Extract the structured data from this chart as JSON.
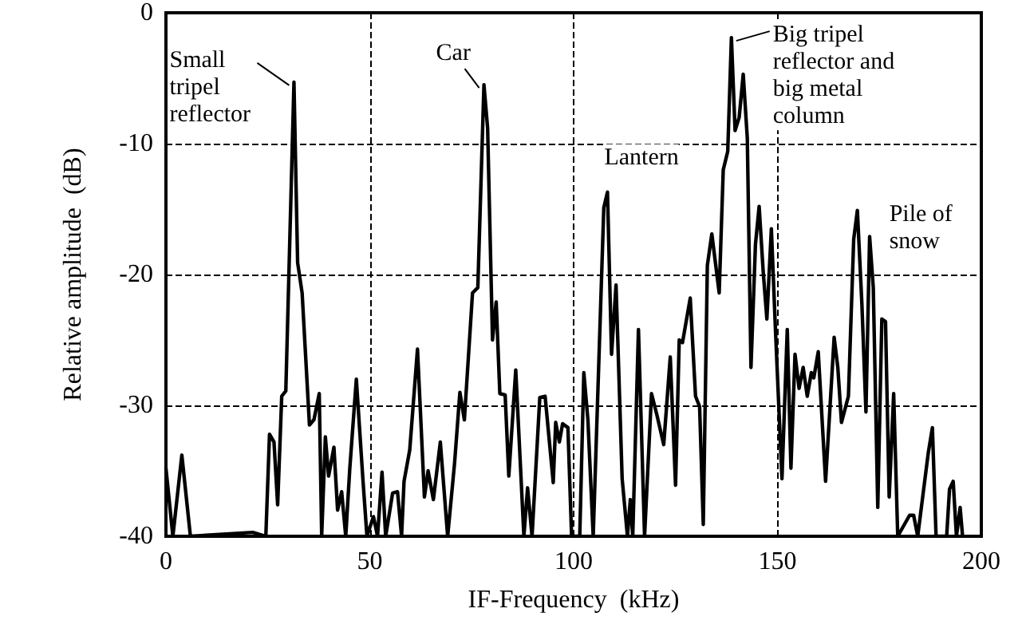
{
  "chart_data": {
    "type": "line",
    "xlabel": "IF-Frequency  (kHz)",
    "ylabel": "Relative amplitude  (dB)",
    "xlim": [
      0,
      200
    ],
    "xticks": [
      0,
      50,
      100,
      150,
      200
    ],
    "ylim": [
      -40,
      0
    ],
    "yticks": [
      -40,
      -30,
      -20,
      -10,
      0
    ],
    "grid": true,
    "marker": "none",
    "line_style": "solid",
    "annotations": [
      {
        "text": "Small\ntripel\nreflector",
        "x": 31.4,
        "y": -5.3
      },
      {
        "text": "Car",
        "x": 78,
        "y": -5.5
      },
      {
        "text": "Lantern",
        "x": 108.3,
        "y": -13.7
      },
      {
        "text": "Big tripel\nreflector and\nbig metal\ncolumn",
        "x": 138.7,
        "y": -1.9
      },
      {
        "text": "Pile of\nsnow",
        "x": 169.6,
        "y": -15.1
      }
    ],
    "series": [
      {
        "color": "#000000",
        "x": [
          0,
          1.7,
          3.9,
          6,
          21.3,
          24.5,
          25.4,
          26.5,
          27.4,
          28.4,
          29.4,
          31.4,
          32.3,
          33.4,
          35.2,
          36.3,
          37.6,
          38.2,
          39.1,
          39.9,
          41.2,
          42.1,
          43.1,
          44.1,
          45.1,
          46.7,
          48.3,
          49.3,
          50.9,
          51.9,
          53,
          53.9,
          55.6,
          56.8,
          57.8,
          58.4,
          59.8,
          61.7,
          63.4,
          64.3,
          65.6,
          67.3,
          69.1,
          70.8,
          72.1,
          73.2,
          75.2,
          76.5,
          78,
          78.9,
          80.1,
          81,
          81.9,
          83.2,
          84.1,
          85.8,
          87.8,
          88.7,
          89.8,
          91.7,
          93,
          95,
          95.6,
          96.5,
          97.3,
          98.6,
          99.5,
          101.5,
          102.5,
          103.5,
          104.8,
          107.4,
          108.3,
          109.3,
          110.4,
          111.9,
          113.2,
          113.9,
          114.5,
          115.9,
          117.4,
          119.1,
          120.4,
          122.1,
          123.7,
          125,
          125.9,
          126.7,
          128.6,
          129.9,
          130.9,
          131.8,
          132.8,
          133.9,
          135.7,
          136.7,
          137.8,
          138.7,
          139.6,
          140.6,
          141.6,
          142.6,
          143.5,
          144.6,
          145.5,
          146.5,
          147.4,
          148.5,
          149.5,
          151.1,
          152.4,
          153.3,
          154.3,
          155.3,
          156.3,
          157.3,
          158.3,
          158.9,
          160,
          161.8,
          163.9,
          164.8,
          165.7,
          167.4,
          168.7,
          169.6,
          170.7,
          171.7,
          172.6,
          173.5,
          174.6,
          175.6,
          176.5,
          177.4,
          178.5,
          179.5,
          182.4,
          183.4,
          184.4,
          187,
          188,
          188.9,
          191.5,
          192.2,
          193.1,
          193.9,
          194.8,
          195.4
        ],
        "values": [
          -34.8,
          -40,
          -33.8,
          -40,
          -39.7,
          -40,
          -32.2,
          -32.8,
          -37.6,
          -29.3,
          -28.9,
          -5.3,
          -19.1,
          -21.4,
          -31.5,
          -31.1,
          -29.1,
          -40,
          -32.4,
          -35.4,
          -33.2,
          -38,
          -36.6,
          -40,
          -34.8,
          -28,
          -35.6,
          -40,
          -38.5,
          -40,
          -35.1,
          -40,
          -36.7,
          -36.6,
          -40,
          -35.8,
          -33.4,
          -25.7,
          -37,
          -35,
          -37.2,
          -32.8,
          -40,
          -34.4,
          -29,
          -31.1,
          -21.4,
          -21,
          -5.5,
          -8.8,
          -25,
          -22.1,
          -29.1,
          -29.2,
          -35.4,
          -27.3,
          -40,
          -36.3,
          -40,
          -29.4,
          -29.3,
          -35.9,
          -31.3,
          -32.8,
          -31.4,
          -31.7,
          -40,
          -40,
          -27.5,
          -31.1,
          -40,
          -14.9,
          -13.7,
          -26.1,
          -20.8,
          -35.6,
          -40,
          -37.2,
          -40,
          -24.2,
          -40,
          -29.1,
          -30.7,
          -33,
          -26.3,
          -36.1,
          -25,
          -25.2,
          -21.8,
          -29.3,
          -30.1,
          -39.1,
          -19.3,
          -16.9,
          -21.4,
          -12,
          -10.6,
          -1.9,
          -9,
          -8,
          -4.7,
          -9.6,
          -27.1,
          -17.7,
          -14.8,
          -19.8,
          -23.4,
          -16.5,
          -24.2,
          -35.6,
          -24.2,
          -34.8,
          -26.1,
          -28.7,
          -27.1,
          -29.3,
          -27.5,
          -27.9,
          -25.9,
          -35.8,
          -24.8,
          -27.1,
          -31.3,
          -29.3,
          -17.3,
          -15.1,
          -22.2,
          -30.5,
          -17.1,
          -21,
          -37.8,
          -23.4,
          -23.6,
          -37,
          -29.1,
          -40,
          -38.4,
          -38.4,
          -40,
          -33.6,
          -31.7,
          -40,
          -40,
          -36.4,
          -35.8,
          -40,
          -37.8,
          -40
        ]
      }
    ]
  }
}
